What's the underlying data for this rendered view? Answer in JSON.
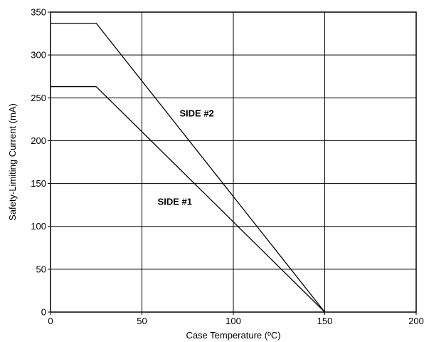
{
  "chart_data": {
    "type": "line",
    "title": "",
    "xlabel": "Case Temperature (ºC)",
    "ylabel": "Safety-Limiting Current (mA)",
    "xlim": [
      0,
      200
    ],
    "ylim": [
      0,
      350
    ],
    "x_ticks": [
      0,
      50,
      100,
      150,
      200
    ],
    "y_ticks": [
      0,
      50,
      100,
      150,
      200,
      250,
      300,
      350
    ],
    "grid": true,
    "legend": "none",
    "series": [
      {
        "name": "SIDE #2",
        "x": [
          0,
          25,
          150
        ],
        "y": [
          337,
          337,
          0
        ]
      },
      {
        "name": "SIDE #1",
        "x": [
          0,
          25,
          150
        ],
        "y": [
          263,
          263,
          0
        ]
      }
    ],
    "annotations": [
      {
        "text": "SIDE #2",
        "x": 80,
        "y": 228
      },
      {
        "text": "SIDE #1",
        "x": 68,
        "y": 125
      }
    ]
  }
}
